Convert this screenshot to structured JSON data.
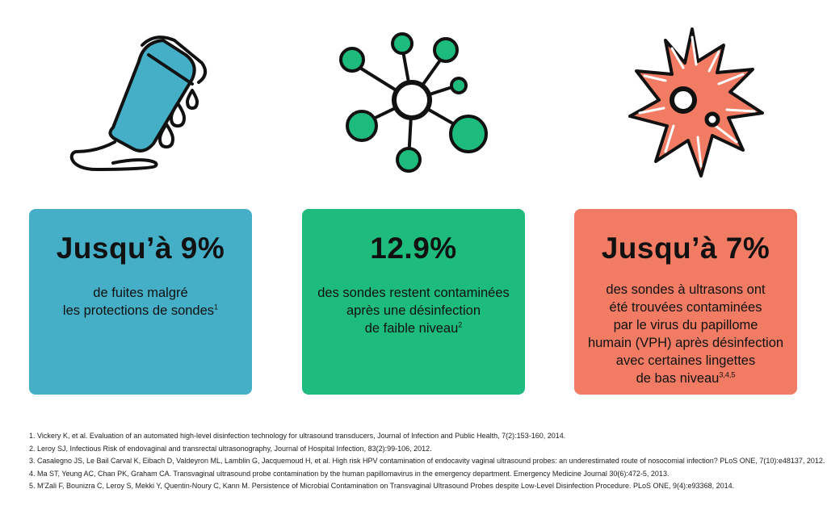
{
  "colors": {
    "card1": "#44afc7",
    "card2": "#1dbc7c",
    "card3": "#f27c63",
    "outline": "#111111",
    "probe_fill": "#44afc7",
    "node_fill": "#1dbc7c",
    "virus_fill": "#f27c63"
  },
  "icons": {
    "left": "ultrasound-probe-icon",
    "middle": "network-nodes-icon",
    "right": "virus-icon"
  },
  "cards": [
    {
      "stat": "Jusqu’à 9%",
      "lines": [
        "de fuites malgré",
        "les protections de sondes"
      ],
      "sup": "1"
    },
    {
      "stat": "12.9%",
      "lines": [
        "des sondes restent contaminées",
        "après une désinfection",
        "de faible niveau"
      ],
      "sup": "2"
    },
    {
      "stat": "Jusqu’à 7%",
      "lines": [
        "des sondes à ultrasons ont",
        "été trouvées contaminées",
        "par le virus du papillome",
        "humain (VPH) après désinfection",
        "avec certaines lingettes",
        "de bas niveau"
      ],
      "sup": "3,4,5"
    }
  ],
  "references": [
    "1.  Vickery K, et al. Evaluation of an automated high-level disinfection technology for ultrasound transducers, Journal of Infection and Public Health, 7(2):153-160, 2014.",
    "2.  Leroy SJ, Infectious Risk of endovaginal and transrectal ultrasonography, Journal of Hospital Infection, 83(2):99-106, 2012.",
    "3.  Casalegno JS, Le Bail Carval K, Eibach D, Valdeyron ML, Lamblin G, Jacquemoud H, et al. High risk HPV contamination of endocavity vaginal ultrasound probes: an underestimated route of nosocomial infection? PLoS ONE, 7(10):e48137, 2012.",
    "4.  Ma ST, Yeung AC, Chan PK, Graham CA. Transvaginal ultrasound probe contamination by the human papillomavirus in the emergency department. Emergency Medicine Journal 30(6):472-5, 2013.",
    "5.  M’Zali F, Bounizra C, Leroy S, Mekki Y, Quentin-Noury C, Kann M. Persistence of Microbial Contamination on Transvaginal Ultrasound Probes despite Low-Level Disinfection Procedure. PLoS ONE, 9(4):e93368, 2014."
  ]
}
